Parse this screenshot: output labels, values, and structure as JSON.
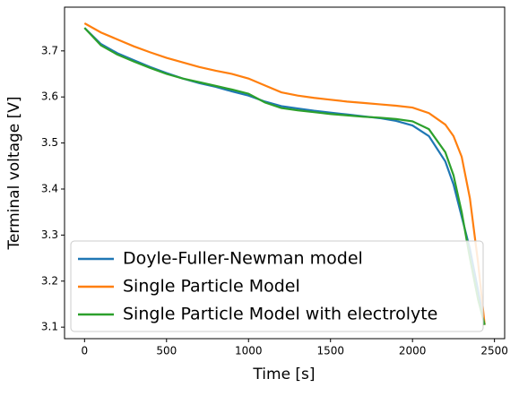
{
  "chart_data": {
    "type": "line",
    "xlabel": "Time [s]",
    "ylabel": "Terminal voltage [V]",
    "x": [
      0,
      100,
      200,
      300,
      400,
      500,
      600,
      700,
      800,
      900,
      1000,
      1100,
      1200,
      1300,
      1400,
      1500,
      1600,
      1700,
      1800,
      1900,
      2000,
      2100,
      2200,
      2250,
      2300,
      2350,
      2400,
      2440
    ],
    "series": [
      {
        "name": "Doyle-Fuller-Newman model",
        "color": "#1f77b4",
        "values": [
          3.75,
          3.715,
          3.695,
          3.68,
          3.665,
          3.652,
          3.64,
          3.63,
          3.622,
          3.612,
          3.603,
          3.59,
          3.58,
          3.575,
          3.57,
          3.566,
          3.562,
          3.558,
          3.554,
          3.548,
          3.538,
          3.515,
          3.46,
          3.41,
          3.34,
          3.27,
          3.18,
          3.105
        ]
      },
      {
        "name": "Single Particle Model",
        "color": "#ff7f0e",
        "values": [
          3.76,
          3.74,
          3.725,
          3.71,
          3.697,
          3.685,
          3.675,
          3.665,
          3.657,
          3.65,
          3.64,
          3.625,
          3.61,
          3.603,
          3.598,
          3.594,
          3.59,
          3.587,
          3.584,
          3.581,
          3.577,
          3.565,
          3.54,
          3.515,
          3.47,
          3.38,
          3.24,
          3.105
        ]
      },
      {
        "name": "Single Particle Model with electrolyte",
        "color": "#2ca02c",
        "values": [
          3.75,
          3.712,
          3.692,
          3.677,
          3.663,
          3.65,
          3.64,
          3.632,
          3.624,
          3.616,
          3.607,
          3.588,
          3.576,
          3.571,
          3.567,
          3.563,
          3.56,
          3.557,
          3.555,
          3.552,
          3.547,
          3.53,
          3.48,
          3.43,
          3.35,
          3.25,
          3.16,
          3.105
        ]
      }
    ],
    "xlim": [
      -122,
      2562
    ],
    "ylim": [
      3.075,
      3.795
    ],
    "xticks": [
      0,
      500,
      1000,
      1500,
      2000,
      2500
    ],
    "yticks": [
      3.1,
      3.2,
      3.3,
      3.4,
      3.5,
      3.6,
      3.7
    ],
    "legend": "lower left",
    "grid": false
  }
}
